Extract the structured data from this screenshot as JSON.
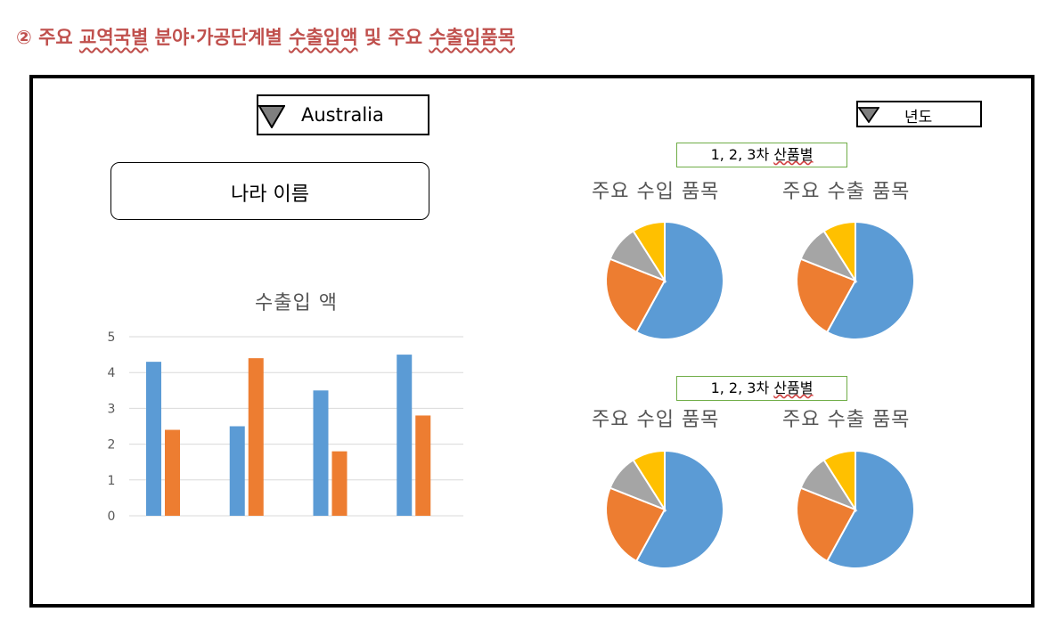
{
  "heading": {
    "circle": "②",
    "words": [
      "주요",
      "교역국별",
      "분야·가공단계별",
      "수출입액",
      "및",
      "주요",
      "수출입품목"
    ]
  },
  "country_dropdown": {
    "value": "Australia",
    "icon": "triangle-down-icon"
  },
  "year_dropdown": {
    "value": "년도",
    "icon": "triangle-down-icon"
  },
  "country_name_box": {
    "label": "나라 이름"
  },
  "category_labels": [
    {
      "prefix": "1, 2, 3차 ",
      "underlined": "산품별"
    },
    {
      "prefix": "1, 2, 3차 ",
      "underlined": "산품별"
    }
  ],
  "pie_titles": {
    "import": "주요 수입 품목",
    "export": "주요 수출 품목"
  },
  "colors": {
    "blue": "#5b9bd5",
    "orange": "#ed7d31",
    "gray": "#a5a5a5",
    "yellow": "#ffc000",
    "heading": "#c0504d",
    "label_border": "#70ad47"
  },
  "chart_data": [
    {
      "type": "bar",
      "title": "수출입 액",
      "categories": [
        "",
        "",
        "",
        ""
      ],
      "series": [
        {
          "values": [
            4.3,
            2.5,
            3.5,
            4.5
          ],
          "color": "#5b9bd5"
        },
        {
          "values": [
            2.4,
            4.4,
            1.8,
            2.8
          ],
          "color": "#ed7d31"
        }
      ],
      "ylim": [
        0,
        5
      ],
      "yticks": [
        0,
        1,
        2,
        3,
        4,
        5
      ],
      "grid": true
    },
    {
      "type": "pie",
      "title": "주요 수입 품목",
      "values": [
        58,
        23,
        10,
        9
      ],
      "colors": [
        "#5b9bd5",
        "#ed7d31",
        "#a5a5a5",
        "#ffc000"
      ]
    },
    {
      "type": "pie",
      "title": "주요 수출 품목",
      "values": [
        58,
        23,
        10,
        9
      ],
      "colors": [
        "#5b9bd5",
        "#ed7d31",
        "#a5a5a5",
        "#ffc000"
      ]
    },
    {
      "type": "pie",
      "title": "주요 수입 품목",
      "values": [
        58,
        23,
        10,
        9
      ],
      "colors": [
        "#5b9bd5",
        "#ed7d31",
        "#a5a5a5",
        "#ffc000"
      ]
    },
    {
      "type": "pie",
      "title": "주요 수출 품목",
      "values": [
        58,
        23,
        10,
        9
      ],
      "colors": [
        "#5b9bd5",
        "#ed7d31",
        "#a5a5a5",
        "#ffc000"
      ]
    }
  ]
}
